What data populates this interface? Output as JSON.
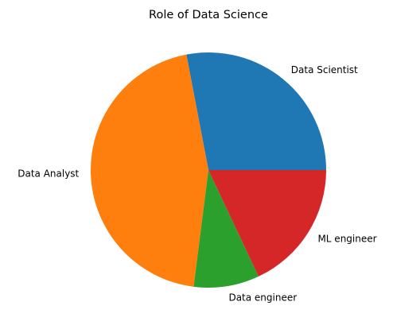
{
  "chart_data": {
    "type": "pie",
    "title": "Role of Data Science",
    "categories": [
      "Data Scientist",
      "Data Analyst",
      "Data engineer",
      "ML engineer"
    ],
    "values": [
      28,
      45,
      9,
      18
    ],
    "colors": [
      "#1f77b4",
      "#ff7f0e",
      "#2ca02c",
      "#d62728"
    ],
    "start_angle": 0,
    "direction": "counterclockwise"
  }
}
